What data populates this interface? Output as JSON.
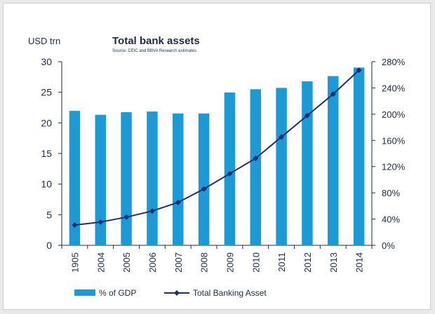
{
  "chart_data": {
    "type": "bar",
    "title": "Total bank assets",
    "subtitle": "Source: CEIC and BBVA Research estimates",
    "y_left_unit": "USD trn",
    "categories": [
      "1905",
      "2004",
      "2005",
      "2006",
      "2007",
      "2008",
      "2009",
      "2010",
      "2011",
      "2012",
      "2013",
      "2014"
    ],
    "series": [
      {
        "name": "% of GDP",
        "type": "bar",
        "axis": "right",
        "values": [
          205,
          199,
          203,
          204,
          201,
          201,
          233,
          238,
          240,
          250,
          258,
          271
        ],
        "color": "#1c9ad6"
      },
      {
        "name": "Total Banking Asset",
        "type": "line",
        "axis": "left",
        "values": [
          3.3,
          3.8,
          4.6,
          5.6,
          7.0,
          9.2,
          11.7,
          14.2,
          17.7,
          21.2,
          24.7,
          28.6
        ],
        "color": "#1b2f6e"
      }
    ],
    "y_left": {
      "min": 0,
      "max": 30,
      "ticks": [
        "0",
        "5",
        "10",
        "15",
        "20",
        "25",
        "30"
      ]
    },
    "y_right": {
      "min": 0,
      "max": 280,
      "ticks": [
        "0%",
        "40%",
        "80%",
        "120%",
        "160%",
        "200%",
        "240%",
        "280%"
      ]
    },
    "grid": false,
    "legend_position": "bottom"
  }
}
